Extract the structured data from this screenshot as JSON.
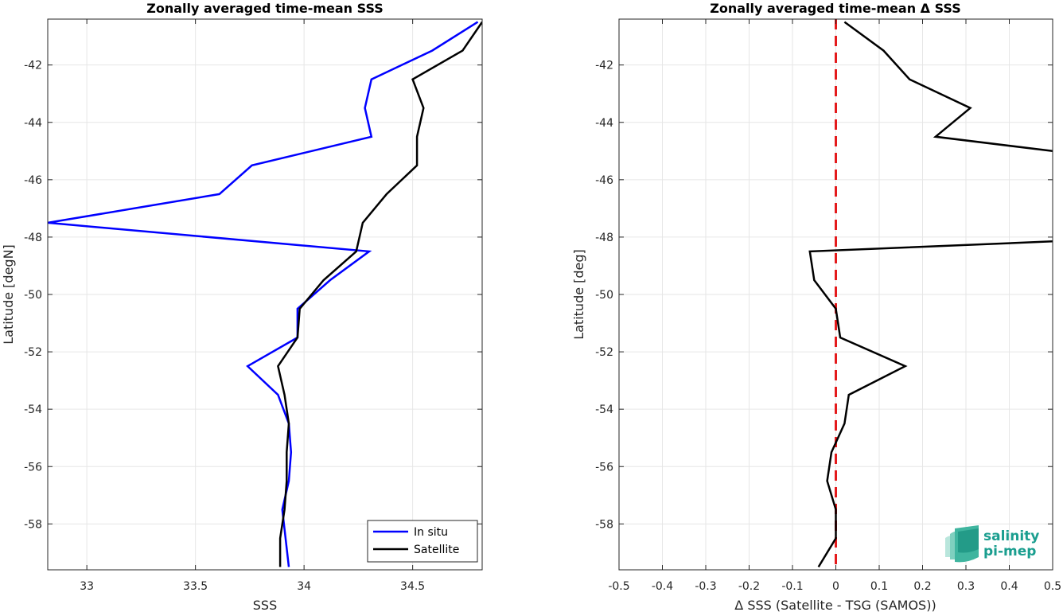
{
  "chart_data": [
    {
      "type": "line",
      "title": "Zonally averaged time-mean SSS",
      "xlabel": "SSS",
      "ylabel": "Latitude [degN]",
      "xlim": [
        32.82,
        34.82
      ],
      "ylim": [
        -59.6,
        -40.4
      ],
      "xticks": [
        33,
        33.5,
        34,
        34.5
      ],
      "xtick_labels": [
        "33",
        "33.5",
        "34",
        "34.5"
      ],
      "yticks": [
        -58,
        -56,
        -54,
        -52,
        -50,
        -48,
        -46,
        -44,
        -42
      ],
      "ytick_labels": [
        "-58",
        "-56",
        "-54",
        "-52",
        "-50",
        "-48",
        "-46",
        "-44",
        "-42"
      ],
      "grid": true,
      "legend_position": "bottom-right",
      "series": [
        {
          "name": "In situ",
          "color": "#0000ff",
          "x": [
            34.8,
            34.59,
            34.31,
            34.28,
            34.31,
            33.76,
            33.61,
            32.82,
            34.3,
            34.12,
            33.97,
            33.97,
            33.74,
            33.88,
            33.93,
            33.94,
            33.93,
            33.9,
            33.93
          ],
          "y": [
            -40.5,
            -41.5,
            -42.5,
            -43.5,
            -44.5,
            -45.5,
            -46.5,
            -47.5,
            -48.5,
            -49.5,
            -50.5,
            -51.5,
            -52.5,
            -53.5,
            -54.5,
            -55.5,
            -56.5,
            -57.5,
            -59.5
          ]
        },
        {
          "name": "Satellite",
          "color": "#000000",
          "x": [
            34.82,
            34.73,
            34.5,
            34.55,
            34.52,
            34.52,
            34.38,
            34.27,
            34.24,
            34.09,
            33.98,
            33.97,
            33.88,
            33.91,
            33.93,
            33.92,
            33.92,
            33.91,
            33.89,
            33.89
          ],
          "y": [
            -40.5,
            -41.5,
            -42.5,
            -43.5,
            -44.5,
            -45.5,
            -46.5,
            -47.5,
            -48.5,
            -49.5,
            -50.5,
            -51.5,
            -52.5,
            -53.5,
            -54.5,
            -55.5,
            -56.5,
            -57.5,
            -58.5,
            -59.5
          ]
        }
      ]
    },
    {
      "type": "line",
      "title": "Zonally averaged time-mean Δ SSS",
      "xlabel": "Δ SSS (Satellite - TSG (SAMOS))",
      "ylabel": "Latitude [deg]",
      "xlim": [
        -0.5,
        0.5
      ],
      "ylim": [
        -59.6,
        -40.4
      ],
      "xticks": [
        -0.5,
        -0.4,
        -0.3,
        -0.2,
        -0.1,
        0,
        0.1,
        0.2,
        0.3,
        0.4,
        0.5
      ],
      "xtick_labels": [
        "-0.5",
        "-0.4",
        "-0.3",
        "-0.2",
        "-0.1",
        "0",
        "0.1",
        "0.2",
        "0.3",
        "0.4",
        "0.5"
      ],
      "yticks": [
        -58,
        -56,
        -54,
        -52,
        -50,
        -48,
        -46,
        -44,
        -42
      ],
      "ytick_labels": [
        "-58",
        "-56",
        "-54",
        "-52",
        "-50",
        "-48",
        "-46",
        "-44",
        "-42"
      ],
      "grid": true,
      "zero_line": {
        "x": 0,
        "color": "#e41a1c",
        "style": "dashed"
      },
      "series": [
        {
          "color": "#000000",
          "segments": [
            {
              "x": [
                0.02,
                0.11,
                0.17,
                0.31,
                0.23,
                0.5
              ],
              "y": [
                -40.5,
                -41.5,
                -42.5,
                -43.5,
                -44.5,
                -45.0
              ]
            },
            {
              "x": [
                0.5,
                -0.06,
                -0.05,
                0.0,
                0.01,
                0.16,
                0.03,
                0.02,
                -0.01,
                -0.02,
                0.0,
                0.0,
                0.0,
                -0.04
              ],
              "y": [
                -48.15,
                -48.5,
                -49.5,
                -50.5,
                -51.5,
                -52.5,
                -53.5,
                -54.5,
                -55.5,
                -56.5,
                -57.5,
                -58.5,
                -58.5,
                -59.5
              ]
            }
          ]
        }
      ]
    }
  ],
  "logo": {
    "line1": "salinity",
    "line2": "pi-mep",
    "color": "#1a9e8f"
  }
}
